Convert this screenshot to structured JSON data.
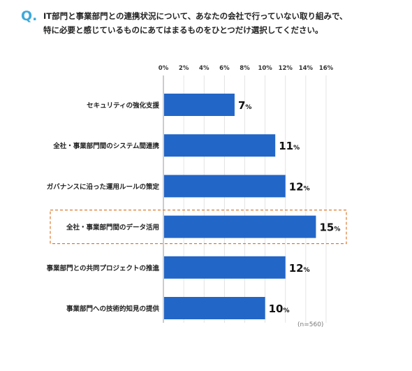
{
  "question": {
    "mark": "Q.",
    "line1": "IT部門と事業部門との連携状況について、あなたの会社で行っていない取り組みで、",
    "line2": "特に必要と感じているものにあてはまるものをひとつだけ選択してください。"
  },
  "sample_note": "(n=560)",
  "colors": {
    "bar": "#2266c8",
    "highlight": "#e07a2e",
    "grid": "#dddddd",
    "accent": "#3fa9d8"
  },
  "chart_data": {
    "type": "bar",
    "orientation": "horizontal",
    "categories": [
      "セキュリティの強化支援",
      "全社・事業部門間のシステム間連携",
      "ガバナンスに沿った運用ルールの策定",
      "全社・事業部門間のデータ活用",
      "事業部門との共同プロジェクトの推進",
      "事業部門への技術的知見の提供"
    ],
    "values": [
      7,
      11,
      12,
      15,
      12,
      10
    ],
    "value_labels": [
      "7",
      "11",
      "12",
      "15",
      "12",
      "10"
    ],
    "unit": "%",
    "xlim": [
      0,
      16
    ],
    "x_ticks": [
      "0%",
      "2%",
      "4%",
      "6%",
      "8%",
      "10%",
      "12%",
      "14%",
      "16%"
    ],
    "highlighted_category": "全社・事業部門間のデータ活用",
    "grid": true
  }
}
